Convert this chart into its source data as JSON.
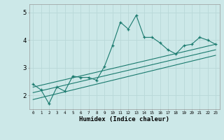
{
  "xlabel": "Humidex (Indice chaleur)",
  "xlim": [
    -0.5,
    23.5
  ],
  "ylim": [
    1.5,
    5.3
  ],
  "yticks": [
    2,
    3,
    4,
    5
  ],
  "bg_color": "#cce8e8",
  "line_color": "#1a7a6e",
  "grid_color": "#b8d8d8",
  "series1_x": [
    0,
    1,
    2,
    3,
    4,
    5,
    6,
    7,
    8,
    9,
    10,
    11,
    12,
    13,
    14,
    15,
    16,
    17,
    18,
    19,
    20,
    21,
    22,
    23
  ],
  "series1_y": [
    2.4,
    2.2,
    1.7,
    2.3,
    2.15,
    2.7,
    2.65,
    2.65,
    2.55,
    3.05,
    3.8,
    4.65,
    4.4,
    4.9,
    4.1,
    4.1,
    3.9,
    3.65,
    3.5,
    3.8,
    3.85,
    4.1,
    4.0,
    3.85
  ],
  "series2_x": [
    0,
    23
  ],
  "series2_y": [
    2.3,
    3.85
  ],
  "series3_x": [
    0,
    23
  ],
  "series3_y": [
    2.1,
    3.65
  ],
  "series4_x": [
    0,
    23
  ],
  "series4_y": [
    1.85,
    3.45
  ]
}
